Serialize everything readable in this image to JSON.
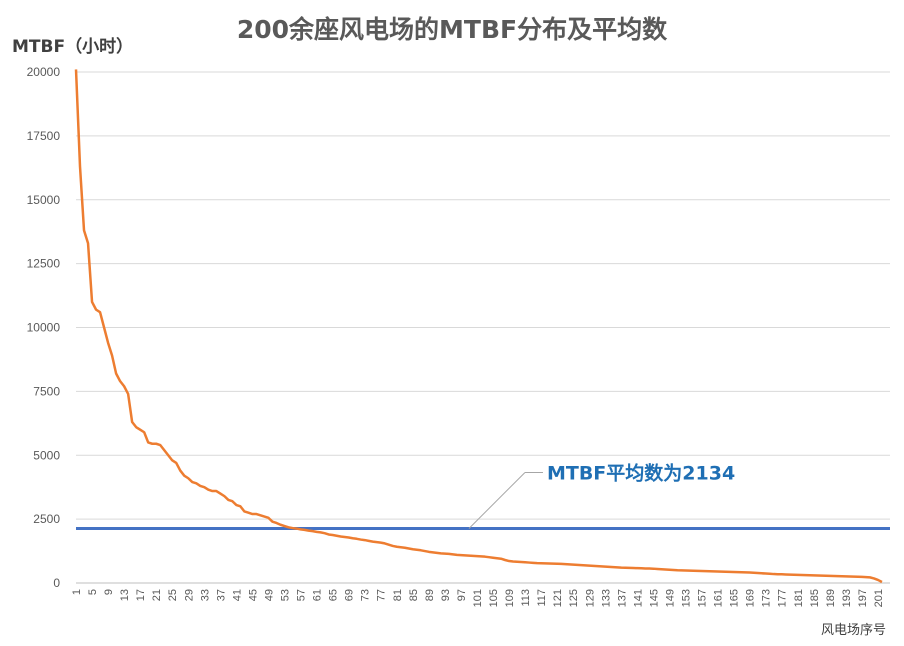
{
  "chart_data": {
    "type": "line",
    "title": "200余座风电场的MTBF分布及平均数",
    "ylabel": "MTBF（小时）",
    "xlabel": "风电场序号",
    "ylim": [
      0,
      20000
    ],
    "yticks": [
      0,
      2500,
      5000,
      7500,
      10000,
      12500,
      15000,
      17500,
      20000
    ],
    "xlim": [
      1,
      204
    ],
    "xticks": [
      1,
      5,
      9,
      13,
      17,
      21,
      25,
      29,
      33,
      37,
      41,
      45,
      49,
      53,
      57,
      61,
      65,
      69,
      73,
      77,
      81,
      85,
      89,
      93,
      97,
      101,
      105,
      109,
      113,
      117,
      121,
      125,
      129,
      133,
      137,
      141,
      145,
      149,
      153,
      157,
      161,
      165,
      169,
      173,
      177,
      181,
      185,
      189,
      193,
      197,
      201
    ],
    "grid": true,
    "series": [
      {
        "type": "line",
        "color": "#ED7D31",
        "values": [
          20100,
          16300,
          13800,
          13300,
          11000,
          10700,
          10600,
          10000,
          9400,
          8900,
          8200,
          7900,
          7700,
          7400,
          6300,
          6100,
          6000,
          5900,
          5500,
          5450,
          5450,
          5400,
          5200,
          5000,
          4800,
          4700,
          4400,
          4200,
          4100,
          3950,
          3900,
          3800,
          3750,
          3650,
          3600,
          3600,
          3500,
          3400,
          3250,
          3200,
          3050,
          3000,
          2800,
          2750,
          2700,
          2700,
          2650,
          2600,
          2550,
          2400,
          2350,
          2280,
          2230,
          2180,
          2150,
          2130,
          2100,
          2080,
          2050,
          2030,
          2000,
          1980,
          1950,
          1900,
          1880,
          1850,
          1820,
          1800,
          1780,
          1750,
          1730,
          1700,
          1680,
          1650,
          1620,
          1600,
          1580,
          1550,
          1500,
          1450,
          1420,
          1400,
          1380,
          1350,
          1320,
          1300,
          1280,
          1250,
          1220,
          1200,
          1180,
          1160,
          1150,
          1140,
          1120,
          1100,
          1090,
          1080,
          1070,
          1060,
          1050,
          1040,
          1030,
          1010,
          990,
          970,
          950,
          900,
          860,
          840,
          830,
          820,
          810,
          800,
          790,
          780,
          775,
          770,
          765,
          760,
          755,
          750,
          740,
          730,
          720,
          710,
          700,
          690,
          680,
          670,
          660,
          650,
          640,
          630,
          620,
          610,
          600,
          595,
          590,
          585,
          580,
          575,
          570,
          565,
          560,
          550,
          540,
          530,
          520,
          510,
          500,
          495,
          490,
          485,
          480,
          475,
          470,
          465,
          460,
          455,
          450,
          445,
          440,
          435,
          430,
          425,
          420,
          415,
          410,
          400,
          390,
          380,
          370,
          360,
          350,
          345,
          340,
          335,
          330,
          325,
          320,
          315,
          310,
          305,
          300,
          295,
          290,
          285,
          280,
          275,
          270,
          265,
          260,
          255,
          250,
          245,
          240,
          230,
          220,
          180,
          120,
          40
        ]
      },
      {
        "type": "hline",
        "color": "#4472C4",
        "value": 2134
      }
    ],
    "annotations": [
      {
        "text": "MTBF平均数为2134",
        "color": "#1F6FB4",
        "target_x": 99,
        "target_y": 2134
      }
    ]
  }
}
